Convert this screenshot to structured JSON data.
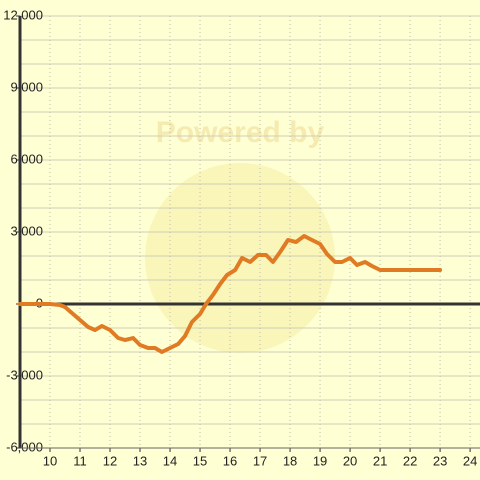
{
  "chart_data": {
    "type": "line",
    "watermark": "Powered by",
    "x": [
      9,
      10,
      10.33,
      10.5,
      10.73,
      11,
      11.27,
      11.5,
      11.73,
      12,
      12.27,
      12.5,
      12.77,
      13,
      13.27,
      13.5,
      13.73,
      14,
      14.27,
      14.5,
      14.73,
      15,
      15.2,
      15.43,
      15.67,
      15.9,
      16.17,
      16.4,
      16.67,
      16.93,
      17.2,
      17.43,
      17.67,
      17.93,
      18.2,
      18.47,
      18.73,
      19,
      19.23,
      19.5,
      19.73,
      20,
      20.23,
      20.5,
      20.73,
      21,
      23
    ],
    "series": [
      {
        "color": "#e07b24",
        "values": [
          0,
          0,
          -40,
          -125,
          -375,
          -667,
          -958,
          -1083,
          -917,
          -1083,
          -1417,
          -1500,
          -1417,
          -1708,
          -1833,
          -1833,
          -2000,
          -1833,
          -1667,
          -1333,
          -750,
          -417,
          0,
          375,
          833,
          1208,
          1417,
          1917,
          1750,
          2042,
          2042,
          1750,
          2167,
          2667,
          2583,
          2833,
          2667,
          2500,
          2083,
          1750,
          1750,
          1917,
          1625,
          1750,
          1583,
          1417,
          1417
        ]
      }
    ],
    "xlim": [
      9,
      24.33
    ],
    "ylim": [
      -6000,
      12000
    ],
    "xticks": [
      10,
      11,
      12,
      13,
      14,
      15,
      16,
      17,
      18,
      19,
      20,
      21,
      22,
      23,
      24
    ],
    "yticks": [
      {
        "value": -6000,
        "label": "-6,000"
      },
      {
        "value": -3000,
        "label": "-3,000"
      },
      0,
      {
        "value": 3000,
        "label": "3,000"
      },
      {
        "value": 6000,
        "label": "6,000"
      },
      {
        "value": 9000,
        "label": "9,000"
      },
      {
        "value": 12000,
        "label": "12,000"
      }
    ],
    "yminorticks": [
      -5000,
      -4000,
      -2000,
      -1000,
      1000,
      2000,
      4000,
      5000,
      7000,
      8000,
      10000,
      11000
    ],
    "grid": true
  }
}
